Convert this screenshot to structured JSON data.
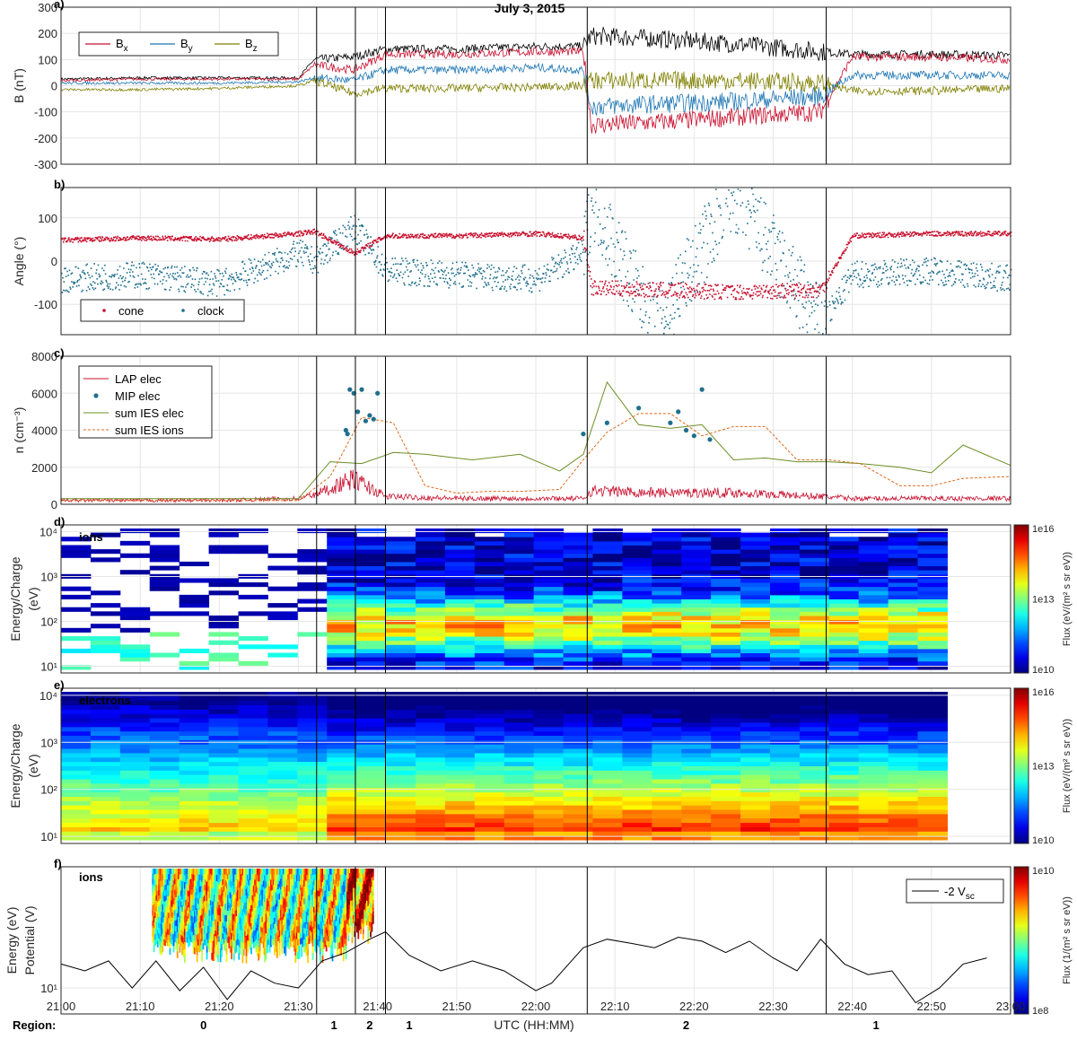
{
  "figure": {
    "title": "July 3, 2015",
    "xlabel": "UTC (HH:MM)",
    "x_ticks": [
      "21:00",
      "21:10",
      "21:20",
      "21:30",
      "21:40",
      "21:50",
      "22:00",
      "22:10",
      "22:20",
      "22:30",
      "22:40",
      "22:50",
      "23:00"
    ],
    "region_title": "Region:",
    "regions": [
      {
        "label": "0",
        "at_min": 18
      },
      {
        "label": "1",
        "at_min": 34.5
      },
      {
        "label": "2",
        "at_min": 39
      },
      {
        "label": "1",
        "at_min": 44
      },
      {
        "label": "2",
        "at_min": 79
      },
      {
        "label": "1",
        "at_min": 103
      }
    ],
    "boundaries_min": [
      32.3,
      37.2,
      41.0,
      66.5,
      96.7
    ]
  },
  "chart_data": [
    {
      "panel": "a)",
      "type": "line",
      "ylabel": "B (nT)",
      "ylim": [
        -300,
        300
      ],
      "y_ticks": [
        "300",
        "200",
        "100",
        "0",
        "-100",
        "-200",
        "-300"
      ],
      "grid": true,
      "legend": "top-left",
      "series": [
        {
          "name": "B",
          "sub": "x",
          "color": "#c8102e",
          "x": [
            0,
            10,
            20,
            30,
            32,
            37,
            41,
            50,
            60,
            66,
            67,
            75,
            85,
            96,
            100,
            110,
            120
          ],
          "y": [
            20,
            25,
            25,
            25,
            80,
            60,
            120,
            120,
            130,
            130,
            -150,
            -140,
            -120,
            -100,
            110,
            110,
            100
          ]
        },
        {
          "name": "B",
          "sub": "y",
          "color": "#1f77b4",
          "x": [
            0,
            10,
            20,
            30,
            32,
            37,
            41,
            50,
            60,
            66,
            67,
            75,
            85,
            96,
            100,
            110,
            120
          ],
          "y": [
            10,
            10,
            10,
            15,
            30,
            20,
            60,
            60,
            70,
            60,
            -80,
            -70,
            -60,
            -40,
            40,
            40,
            40
          ]
        },
        {
          "name": "B",
          "sub": "z",
          "color": "#808000",
          "x": [
            0,
            10,
            20,
            30,
            32,
            37,
            41,
            50,
            60,
            66,
            67,
            75,
            85,
            96,
            100,
            110,
            120
          ],
          "y": [
            -15,
            -15,
            -10,
            0,
            20,
            -30,
            -10,
            -10,
            -5,
            0,
            20,
            20,
            20,
            10,
            -20,
            -20,
            -10
          ]
        },
        {
          "name": "",
          "color": "#000000",
          "x": [
            0,
            10,
            20,
            30,
            32,
            37,
            41,
            50,
            60,
            66,
            67,
            75,
            85,
            96,
            100,
            110,
            120
          ],
          "y": [
            25,
            30,
            30,
            30,
            100,
            110,
            140,
            140,
            150,
            150,
            190,
            180,
            160,
            130,
            120,
            120,
            115
          ]
        }
      ]
    },
    {
      "panel": "b)",
      "type": "scatter",
      "ylabel": "Angle (°)",
      "ylim": [
        -170,
        170
      ],
      "y_ticks": [
        "100",
        "0",
        "-100"
      ],
      "legend": "bottom-left",
      "series": [
        {
          "name": "cone",
          "color": "#c8102e",
          "x": [
            0,
            10,
            20,
            30,
            32,
            37,
            41,
            50,
            60,
            66,
            67,
            75,
            85,
            96,
            100,
            110,
            120
          ],
          "y": [
            50,
            55,
            52,
            65,
            70,
            20,
            60,
            60,
            65,
            55,
            -60,
            -65,
            -70,
            -65,
            60,
            65,
            65
          ]
        },
        {
          "name": "clock",
          "color": "#1f6f8b",
          "x": [
            0,
            10,
            20,
            30,
            32,
            37,
            41,
            50,
            60,
            66,
            67,
            75,
            85,
            96,
            100,
            110,
            120
          ],
          "y": [
            -40,
            -30,
            -50,
            20,
            0,
            80,
            -20,
            -30,
            -40,
            20,
            150,
            -160,
            160,
            -150,
            -30,
            -20,
            -40
          ]
        }
      ]
    },
    {
      "panel": "c)",
      "type": "line",
      "ylabel": "n (cm⁻³)",
      "ylim": [
        0,
        8000
      ],
      "y_ticks": [
        "8000",
        "6000",
        "4000",
        "2000",
        "0"
      ],
      "legend": "top-left",
      "series": [
        {
          "name": "LAP elec",
          "color": "#c8102e",
          "x": [
            0,
            10,
            20,
            30,
            32,
            37,
            41,
            50,
            60,
            66,
            67,
            75,
            85,
            96,
            100,
            110,
            120
          ],
          "y": [
            200,
            200,
            200,
            300,
            500,
            1300,
            400,
            300,
            300,
            300,
            700,
            600,
            600,
            400,
            300,
            300,
            300
          ]
        },
        {
          "name": "MIP elec",
          "color": "#1f6f8b",
          "x": [
            36,
            36.5,
            37,
            38,
            38.5,
            39,
            40,
            36.2,
            37.5,
            39.5,
            66,
            69,
            73,
            77,
            78,
            79,
            80,
            81,
            82
          ],
          "y": [
            4000,
            6200,
            6000,
            6200,
            4500,
            4800,
            6000,
            3800,
            5000,
            4600,
            3800,
            4400,
            5200,
            4400,
            5000,
            4000,
            3700,
            6200,
            3500
          ]
        },
        {
          "name": "sum IES elec",
          "color": "#6b8e23",
          "x": [
            0,
            30,
            34,
            38,
            42,
            46,
            52,
            58,
            63,
            66,
            69,
            73,
            77,
            81,
            85,
            89,
            93,
            97,
            101,
            106,
            110,
            114,
            120
          ],
          "y": [
            300,
            300,
            2300,
            2200,
            2800,
            2700,
            2400,
            2700,
            1800,
            2700,
            6600,
            4300,
            4100,
            4300,
            2400,
            2500,
            2300,
            2300,
            2200,
            2000,
            1700,
            3200,
            2100
          ]
        },
        {
          "name": "sum IES ions",
          "color": "#e06a1b",
          "dashed": true,
          "x": [
            0,
            30,
            34,
            38,
            42,
            46,
            50,
            54,
            58,
            63,
            66,
            69,
            73,
            77,
            81,
            85,
            89,
            93,
            97,
            101,
            106,
            110,
            114,
            120
          ],
          "y": [
            200,
            200,
            1500,
            4700,
            4400,
            1000,
            600,
            700,
            700,
            800,
            2400,
            3900,
            4900,
            4900,
            3700,
            4200,
            4200,
            2400,
            2400,
            2200,
            1000,
            1000,
            1400,
            1500
          ]
        }
      ]
    },
    {
      "panel": "d)",
      "type": "heatmap",
      "ylabel": [
        "Energy/Charge",
        "(eV)"
      ],
      "label": "ions",
      "y_ticks": [
        "10⁴",
        "10³",
        "10²",
        "10¹"
      ],
      "colorbar": {
        "label": "Flux (eV/(m² s sr eV))",
        "ticks": [
          "1e16",
          "1e13",
          "1e10"
        ]
      }
    },
    {
      "panel": "e)",
      "type": "heatmap",
      "ylabel": [
        "Energy/Charge",
        "(eV)"
      ],
      "label": "electrons",
      "y_ticks": [
        "10⁴",
        "10³",
        "10²",
        "10¹"
      ],
      "colorbar": {
        "label": "Flux (eV/(m² s sr eV))",
        "ticks": [
          "1e16",
          "1e13",
          "1e10"
        ]
      }
    },
    {
      "panel": "f)",
      "type": "heatmap",
      "ylabel": [
        "Energy (eV)",
        "Potential (V)"
      ],
      "label": "ions",
      "y_ticks": [
        "10¹"
      ],
      "legend_series": [
        {
          "name": "-2 V",
          "sub": "sc",
          "color": "#000000"
        }
      ],
      "potential": {
        "x": [
          0,
          3,
          6,
          9,
          12,
          15,
          18,
          21,
          24,
          27,
          30,
          33,
          36,
          39,
          41,
          44,
          48,
          52,
          56,
          60,
          62,
          66,
          69,
          72,
          75,
          78,
          81,
          84,
          87,
          90,
          93,
          96,
          99,
          102,
          105,
          108,
          111,
          114,
          117
        ],
        "y": [
          16,
          14,
          17,
          10,
          17,
          9.5,
          15,
          8,
          14,
          11,
          10,
          17,
          20,
          26,
          30,
          19,
          14,
          17,
          14,
          9.5,
          11,
          22,
          26,
          24,
          22,
          27,
          25,
          20,
          25,
          18,
          14,
          26,
          16,
          13,
          14,
          7.5,
          10,
          16,
          18
        ]
      },
      "colorbar": {
        "label": "Flux (1/(m² s sr eV))",
        "ticks": [
          "1e10",
          "1e8"
        ]
      }
    }
  ]
}
